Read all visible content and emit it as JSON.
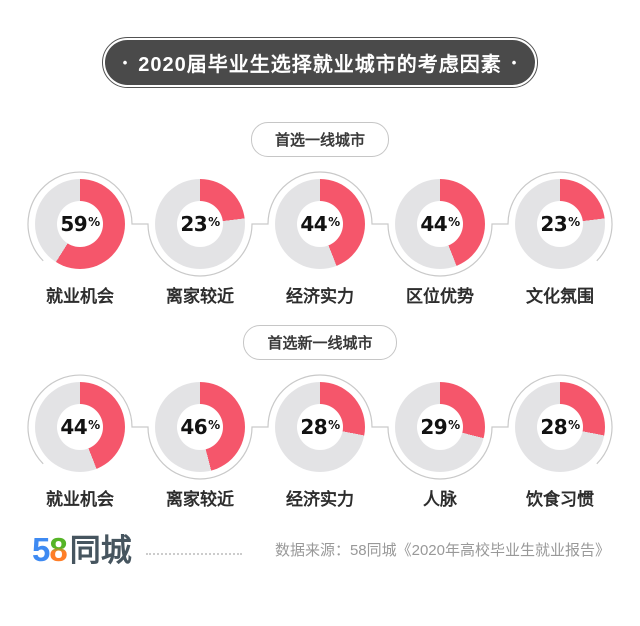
{
  "header": {
    "bullet_left": "•",
    "title": "2020届毕业生选择就业城市的考虑因素",
    "bullet_right": "•"
  },
  "colors": {
    "accent": "#F5566B",
    "ring_bg": "#E3E3E5",
    "title_bg": "#4A4A4A",
    "line": "#C9C9C9",
    "logo_blue": "#3E8AF2",
    "logo_green": "#55B427",
    "logo_orange": "#FF7E27",
    "logo_name": "#46555F",
    "source_text": "#999999"
  },
  "chart_data": [
    {
      "type": "pie",
      "group_label": "首选一线城市",
      "categories": [
        "就业机会",
        "离家较近",
        "经济实力",
        "区位优势",
        "文化氛围"
      ],
      "values": [
        59,
        23,
        44,
        44,
        23
      ],
      "unit": "%",
      "legend_position": "none",
      "note": "donut charts, filled arc starts at 12 o'clock clockwise"
    },
    {
      "type": "pie",
      "group_label": "首选新一线城市",
      "categories": [
        "就业机会",
        "离家较近",
        "经济实力",
        "人脉",
        "饮食习惯"
      ],
      "values": [
        44,
        46,
        28,
        29,
        28
      ],
      "unit": "%",
      "legend_position": "none",
      "note": "donut charts, filled arc starts at 12 o'clock clockwise"
    }
  ],
  "footer": {
    "logo": {
      "five": "5",
      "eight": "8",
      "name": "同城"
    },
    "source": "数据来源：58同城《2020年高校毕业生就业报告》"
  }
}
